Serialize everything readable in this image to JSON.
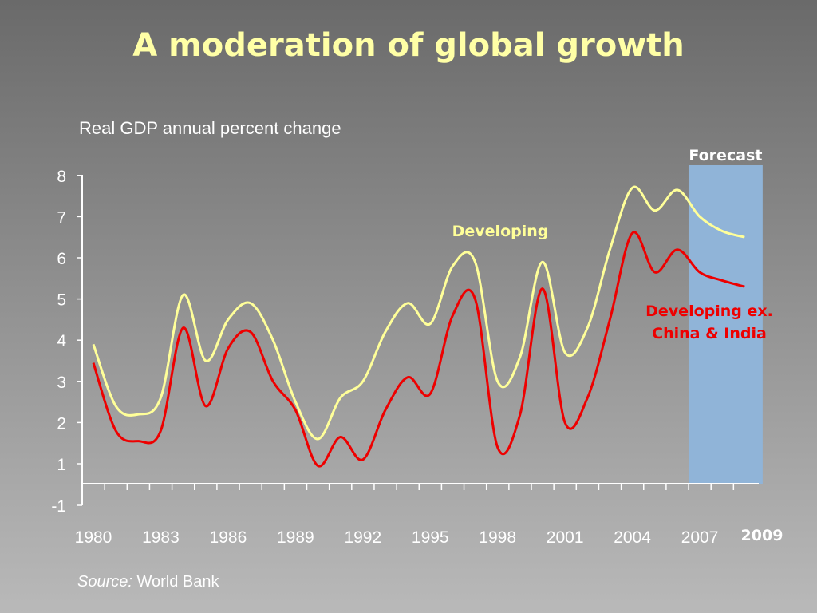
{
  "slide": {
    "title": "A moderation of global growth",
    "subtitle": "Real GDP annual percent change",
    "source_label": "Source:",
    "source_value": "World Bank"
  },
  "chart_data": {
    "type": "line",
    "title": "A moderation of global growth",
    "ylabel": "Real GDP annual percent change",
    "ylim": [
      -1,
      8
    ],
    "yticks": [
      "8",
      "7",
      "6",
      "5",
      "4",
      "3",
      "2",
      "1",
      "-1"
    ],
    "xticks": [
      "1980",
      "1983",
      "1986",
      "1989",
      "1992",
      "1995",
      "1998",
      "2001",
      "2004",
      "2007"
    ],
    "extra_xlabel": "2009",
    "forecast_label": "Forecast",
    "forecast_range": [
      2006.5,
      2009.8
    ],
    "grid": false,
    "colors": {
      "developing": "#ffff99",
      "developing_ex": "#ee0000",
      "forecast_band": "#90b4d8",
      "axis": "#ffffff"
    },
    "series": [
      {
        "name": "Developing",
        "x": [
          1980,
          1981,
          1982,
          1983,
          1984,
          1985,
          1986,
          1987,
          1988,
          1989,
          1990,
          1991,
          1992,
          1993,
          1994,
          1995,
          1996,
          1997,
          1998,
          1999,
          2000,
          2001,
          2002,
          2003,
          2004,
          2005,
          2006,
          2007,
          2008,
          2009
        ],
        "values": [
          3.9,
          2.4,
          2.2,
          2.6,
          5.1,
          3.5,
          4.5,
          4.9,
          4.0,
          2.5,
          1.6,
          2.6,
          3.0,
          4.2,
          4.9,
          4.4,
          5.8,
          5.9,
          3.0,
          3.6,
          5.9,
          3.7,
          4.3,
          6.2,
          7.7,
          7.15,
          7.65,
          7.0,
          6.65,
          6.5
        ]
      },
      {
        "name": "Developing ex. China & India",
        "x": [
          1980,
          1981,
          1982,
          1983,
          1984,
          1985,
          1986,
          1987,
          1988,
          1989,
          1990,
          1991,
          1992,
          1993,
          1994,
          1995,
          1996,
          1997,
          1998,
          1999,
          2000,
          2001,
          2002,
          2003,
          2004,
          2005,
          2006,
          2007,
          2008,
          2009
        ],
        "values": [
          3.45,
          1.8,
          1.55,
          1.8,
          4.3,
          2.4,
          3.8,
          4.2,
          3.0,
          2.3,
          0.95,
          1.65,
          1.1,
          2.3,
          3.1,
          2.7,
          4.6,
          5.0,
          1.4,
          2.2,
          5.25,
          2.0,
          2.6,
          4.5,
          6.6,
          5.65,
          6.2,
          5.65,
          5.45,
          5.3
        ]
      }
    ]
  }
}
